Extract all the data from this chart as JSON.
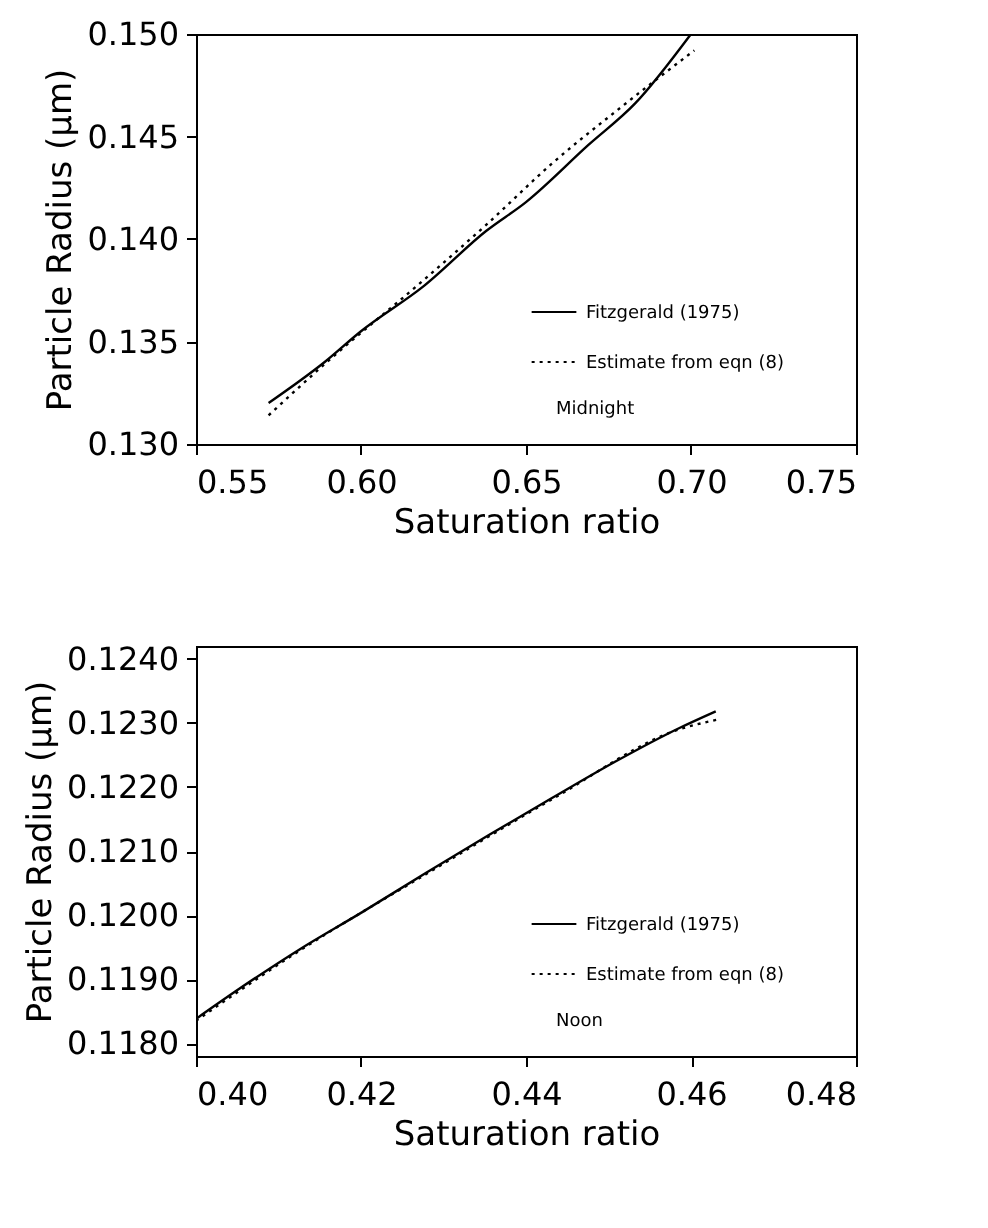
{
  "chart_data": [
    {
      "type": "line",
      "xlabel": "Saturation ratio",
      "ylabel": "Particle Radius (μm)",
      "xlim": [
        0.55,
        0.75
      ],
      "ylim": [
        0.13,
        0.15
      ],
      "xticks": [
        {
          "value": 0.55,
          "label": "0.55"
        },
        {
          "value": 0.6,
          "label": "0.60"
        },
        {
          "value": 0.65,
          "label": "0.65"
        },
        {
          "value": 0.7,
          "label": "0.70"
        },
        {
          "value": 0.75,
          "label": "0.75"
        }
      ],
      "yticks": [
        {
          "value": 0.13,
          "label": "0.130"
        },
        {
          "value": 0.135,
          "label": "0.135"
        },
        {
          "value": 0.14,
          "label": "0.140"
        },
        {
          "value": 0.145,
          "label": "0.145"
        },
        {
          "value": 0.15,
          "label": "0.150"
        }
      ],
      "grid": false,
      "legend": "bottom right",
      "annotations": [
        "Midnight"
      ],
      "series": [
        {
          "name": "Fitzgerald (1975)",
          "color": "#000000",
          "line_style": "solid",
          "x": [
            0.572,
            0.589,
            0.6,
            0.619,
            0.638,
            0.65,
            0.669,
            0.683,
            0.7
          ],
          "values": [
            0.132,
            0.134,
            0.1355,
            0.1377,
            0.1404,
            0.1418,
            0.1446,
            0.1466,
            0.15
          ]
        },
        {
          "name": "Estimate from eqn (8)",
          "color": "#000000",
          "line_style": "dotted",
          "x": [
            0.572,
            0.589,
            0.619,
            0.638,
            0.658,
            0.677,
            0.701
          ],
          "values": [
            0.1314,
            0.1339,
            0.138,
            0.1407,
            0.1437,
            0.1462,
            0.1492
          ]
        }
      ]
    },
    {
      "type": "line",
      "xlabel": "Saturation ratio",
      "ylabel": "Particle Radius (μm)",
      "xlim": [
        0.4,
        0.48
      ],
      "ylim": [
        0.1178,
        0.1242
      ],
      "xticks": [
        {
          "value": 0.4,
          "label": "0.40"
        },
        {
          "value": 0.42,
          "label": "0.42"
        },
        {
          "value": 0.44,
          "label": "0.44"
        },
        {
          "value": 0.46,
          "label": "0.46"
        },
        {
          "value": 0.48,
          "label": "0.48"
        }
      ],
      "yticks": [
        {
          "value": 0.118,
          "label": "0.1180"
        },
        {
          "value": 0.119,
          "label": "0.1190"
        },
        {
          "value": 0.12,
          "label": "0.1200"
        },
        {
          "value": 0.121,
          "label": "0.1210"
        },
        {
          "value": 0.122,
          "label": "0.1220"
        },
        {
          "value": 0.123,
          "label": "0.1230"
        },
        {
          "value": 0.124,
          "label": "0.1240"
        }
      ],
      "grid": false,
      "legend": "bottom right",
      "annotations": [
        "Noon"
      ],
      "series": [
        {
          "name": "Fitzgerald (1975)",
          "color": "#000000",
          "line_style": "solid",
          "x": [
            0.4,
            0.4048,
            0.4125,
            0.4202,
            0.4279,
            0.4355,
            0.4432,
            0.4509,
            0.4586,
            0.463
          ],
          "values": [
            0.11838,
            0.11881,
            0.11946,
            0.12005,
            0.12066,
            0.12125,
            0.12183,
            0.1224,
            0.12292,
            0.12318
          ]
        },
        {
          "name": "Estimate from eqn (8)",
          "color": "#000000",
          "line_style": "dotted",
          "x": [
            0.4,
            0.4125,
            0.4279,
            0.4432,
            0.4586,
            0.4632
          ],
          "values": [
            0.11835,
            0.11944,
            0.12064,
            0.12181,
            0.1229,
            0.12305
          ]
        }
      ]
    }
  ]
}
